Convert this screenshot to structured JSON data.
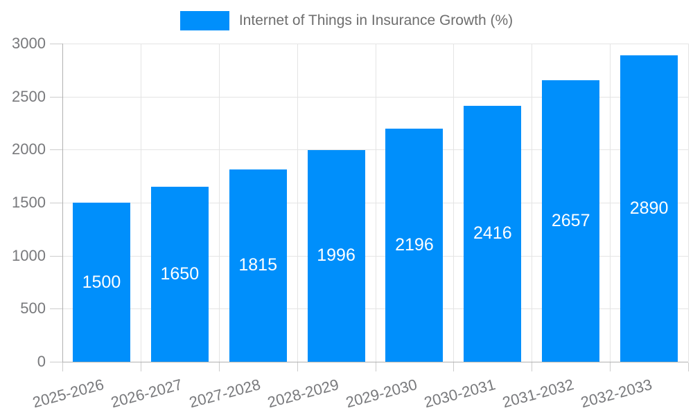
{
  "chart_data": {
    "type": "bar",
    "title": "Internet of Things in Insurance Growth (%)",
    "categories": [
      "2025-2026",
      "2026-2027",
      "2027-2028",
      "2028-2029",
      "2029-2030",
      "2030-2031",
      "2031-2032",
      "2032-2033"
    ],
    "values": [
      1500,
      1650,
      1815,
      1996,
      2196,
      2416,
      2657,
      2890
    ],
    "series": [
      {
        "name": "Internet of Things in Insurance Growth (%)",
        "values": [
          1500,
          1650,
          1815,
          1996,
          2196,
          2416,
          2657,
          2890
        ]
      }
    ],
    "xlabel": "",
    "ylabel": "",
    "ylim": [
      0,
      3000
    ],
    "yticks": [
      0,
      500,
      1000,
      1500,
      2000,
      2500,
      3000
    ],
    "grid": "on",
    "legend_position": "top-center",
    "x_label_rotation_deg": -15,
    "colors": {
      "bar": "#008FFB",
      "bar_value_label": "#FFFFFF",
      "gridline": "#E4E4E4",
      "axis_line": "#B1B1B1",
      "tick": "#CCCCCC",
      "axis_text": "#78797C",
      "legend_text": "#6E6E6E"
    }
  }
}
